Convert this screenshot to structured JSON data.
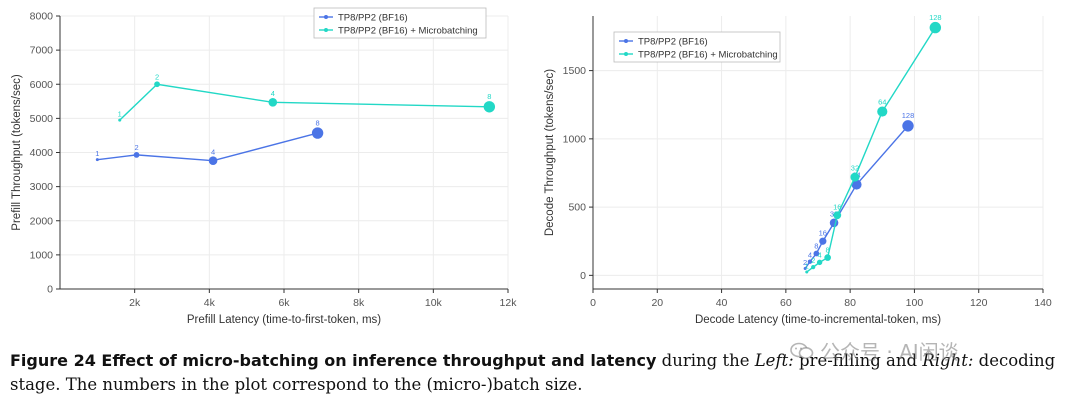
{
  "colors": {
    "series1": "#4b74e6",
    "series2": "#22d8c6",
    "grid": "#ececec",
    "axis": "#333333",
    "text": "#333333",
    "tick": "#555555",
    "label": "#3a3a8a"
  },
  "chart_data": [
    {
      "type": "line",
      "xlabel": "Prefill Latency (time-to-first-token, ms)",
      "ylabel": "Prefill Throughput (tokens/sec)",
      "xlim": [
        0,
        12000
      ],
      "ylim": [
        0,
        8000
      ],
      "xticks": [
        2000,
        4000,
        6000,
        8000,
        10000,
        12000
      ],
      "xtick_labels": [
        "2k",
        "4k",
        "6k",
        "8k",
        "10k",
        "12k"
      ],
      "yticks": [
        0,
        1000,
        2000,
        3000,
        4000,
        5000,
        6000,
        7000,
        8000
      ],
      "ytick_labels": [
        "0",
        "1000",
        "2000",
        "3000",
        "4000",
        "5000",
        "6000",
        "7000",
        "8000"
      ],
      "legend_position": "top-right",
      "grid": true,
      "series": [
        {
          "name": "TP8/PP2 (BF16)",
          "x": [
            1000,
            2050,
            4100,
            6900
          ],
          "y": [
            3790,
            3930,
            3760,
            4570
          ],
          "labels": [
            "1",
            "2",
            "4",
            "8"
          ]
        },
        {
          "name": "TP8/PP2 (BF16) + Microbatching",
          "x": [
            1600,
            2600,
            5700,
            11500
          ],
          "y": [
            4950,
            6000,
            5470,
            5340
          ],
          "labels": [
            "1",
            "2",
            "4",
            "8"
          ]
        }
      ]
    },
    {
      "type": "line",
      "xlabel": "Decode Latency (time-to-incremental-token, ms)",
      "ylabel": "Decode Throughput (tokens/sec)",
      "xlim": [
        0,
        140
      ],
      "ylim": [
        -100,
        1900
      ],
      "xticks": [
        0,
        20,
        40,
        60,
        80,
        100,
        120,
        140
      ],
      "xtick_labels": [
        "0",
        "20",
        "40",
        "60",
        "80",
        "100",
        "120",
        "140"
      ],
      "yticks": [
        0,
        500,
        1000,
        1500
      ],
      "ytick_labels": [
        "0",
        "500",
        "1000",
        "1500"
      ],
      "legend_position": "top-left",
      "grid": true,
      "series": [
        {
          "name": "TP8/PP2 (BF16)",
          "x": [
            66,
            67.5,
            69.5,
            71.5,
            75,
            82,
            98
          ],
          "y": [
            50,
            100,
            160,
            250,
            385,
            665,
            1095
          ],
          "labels": [
            "2",
            "4",
            "8",
            "16",
            "32",
            "64",
            "128"
          ]
        },
        {
          "name": "TP8/PP2 (BF16) + Microbatching",
          "x": [
            66.5,
            68.5,
            70.5,
            73,
            76,
            81.5,
            90,
            106.5
          ],
          "y": [
            25,
            60,
            95,
            130,
            440,
            720,
            1200,
            1815
          ],
          "labels": [
            "1",
            "2",
            "4",
            "8",
            "16",
            "32",
            "64",
            "128"
          ]
        }
      ]
    }
  ],
  "caption": {
    "lead": "Figure 24  Effect of micro-batching on inference throughput and latency",
    "text1": " during the ",
    "left": "Left:",
    "text2": " pre-filling and ",
    "right": "Right:",
    "text3": " decoding stage. The numbers in the plot correspond to the (micro-)batch size."
  },
  "watermark": {
    "text": "公众号 · AI闲谈",
    "icon": "wechat-icon"
  }
}
